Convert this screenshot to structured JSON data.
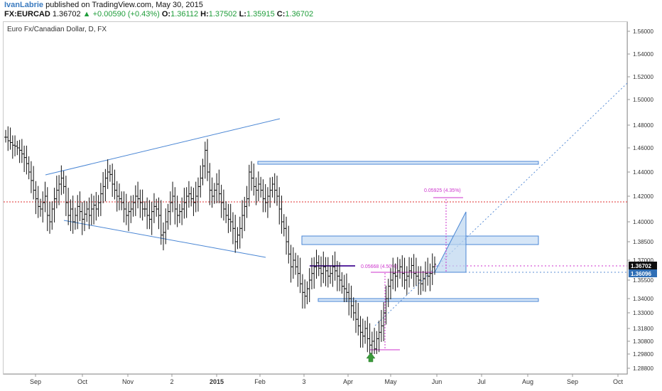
{
  "header": {
    "author": "IvanLabrie",
    "published": "published on TradingView.com, May 30, 2015",
    "symbol": "FX:EURCAD",
    "last": "1.36702",
    "change": "+0.00590 (+0.43%)",
    "o_label": "O:",
    "o_value": "1.36112",
    "h_label": "H:",
    "h_value": "1.37502",
    "l_label": "L:",
    "l_value": "1.35915",
    "c_label": "C:",
    "c_value": "1.36702"
  },
  "chart_data": {
    "type": "candlestick",
    "title": "Euro Fx/Canadian Dollar, D, FX",
    "ylim": [
      1.278,
      1.57
    ],
    "y_ticks": [
      "1.56000",
      "1.54000",
      "1.52000",
      "1.50000",
      "1.48000",
      "1.46000",
      "1.44000",
      "1.42000",
      "1.40000",
      "1.38500",
      "1.37000",
      "1.35500",
      "1.34000",
      "1.33000",
      "1.31800",
      "1.30800",
      "1.29800",
      "1.28800"
    ],
    "x_labels": [
      "Sep",
      "Oct",
      "Nov",
      "2",
      "2015",
      "Feb",
      "3",
      "Apr",
      "May",
      "Jun",
      "Jul",
      "Aug",
      "Sep",
      "Oct"
    ],
    "series_close": [
      1.472,
      1.468,
      1.466,
      1.463,
      1.462,
      1.46,
      1.458,
      1.455,
      1.452,
      1.447,
      1.44,
      1.433,
      1.425,
      1.418,
      1.412,
      1.41,
      1.415,
      1.42,
      1.405,
      1.4,
      1.41,
      1.418,
      1.425,
      1.43,
      1.435,
      1.428,
      1.415,
      1.405,
      1.41,
      1.4,
      1.405,
      1.412,
      1.408,
      1.402,
      1.406,
      1.41,
      1.405,
      1.41,
      1.413,
      1.41,
      1.415,
      1.422,
      1.428,
      1.435,
      1.44,
      1.438,
      1.43,
      1.425,
      1.42,
      1.418,
      1.415,
      1.41,
      1.405,
      1.408,
      1.41,
      1.415,
      1.42,
      1.418,
      1.415,
      1.41,
      1.41,
      1.405,
      1.402,
      1.408,
      1.412,
      1.41,
      1.405,
      1.39,
      1.392,
      1.4,
      1.408,
      1.415,
      1.42,
      1.41,
      1.405,
      1.408,
      1.41,
      1.415,
      1.42,
      1.422,
      1.418,
      1.415,
      1.42,
      1.428,
      1.435,
      1.445,
      1.458,
      1.44,
      1.425,
      1.42,
      1.425,
      1.43,
      1.422,
      1.415,
      1.41,
      1.405,
      1.402,
      1.4,
      1.395,
      1.385,
      1.39,
      1.395,
      1.405,
      1.412,
      1.418,
      1.44,
      1.435,
      1.428,
      1.425,
      1.43,
      1.425,
      1.418,
      1.415,
      1.42,
      1.425,
      1.43,
      1.425,
      1.42,
      1.41,
      1.4,
      1.395,
      1.385,
      1.375,
      1.365,
      1.37,
      1.365,
      1.36,
      1.352,
      1.345,
      1.342,
      1.348,
      1.355,
      1.36,
      1.365,
      1.368,
      1.364,
      1.36,
      1.365,
      1.362,
      1.358,
      1.36,
      1.365,
      1.362,
      1.358,
      1.355,
      1.35,
      1.348,
      1.345,
      1.34,
      1.335,
      1.33,
      1.325,
      1.32,
      1.315,
      1.312,
      1.318,
      1.31,
      1.305,
      1.308,
      1.302,
      1.31,
      1.315,
      1.32,
      1.33,
      1.34,
      1.35,
      1.355,
      1.36,
      1.358,
      1.362,
      1.365,
      1.36,
      1.355,
      1.358,
      1.362,
      1.366,
      1.36,
      1.358,
      1.355,
      1.352,
      1.356,
      1.36,
      1.358,
      1.36,
      1.365,
      1.367
    ],
    "last_price_label": "1.36702",
    "line_price_label": "1.36096",
    "measure_labels": [
      "0.05925 (4.35%)",
      "0.05668 (4.50%)"
    ]
  },
  "colors": {
    "up_label_bg": "#0d0d0d",
    "line_label_bg": "#2f6eb5",
    "channel": "#4a86d4",
    "zone_fill": "#d6e6f7",
    "measure": "#cc33cc",
    "red_level": "#e03030",
    "arrow": "#3a9a3a"
  }
}
